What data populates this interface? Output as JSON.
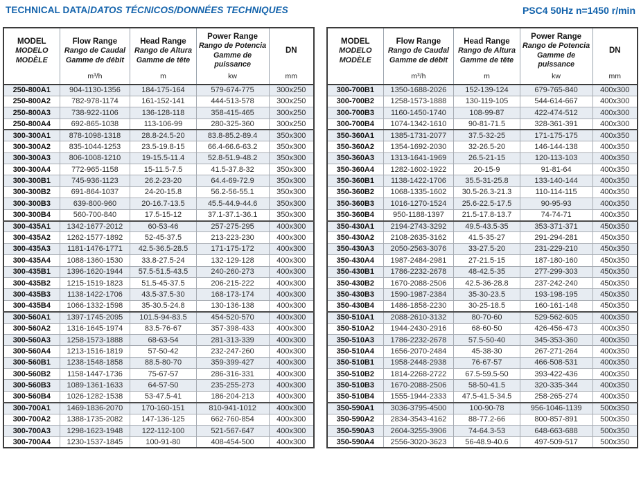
{
  "header": {
    "title_main": "TECHNICAL DATA/",
    "title_intl": "DATOS TÉCNICOS/DONNÉES TECHNIQUES",
    "spec": "PSC4 50Hz n=1450 r/min"
  },
  "colors": {
    "accent": "#1262ab",
    "row_shade": "#e7ecf2",
    "border_dark": "#3b3b3b",
    "border_light": "#9aa3ad"
  },
  "column_headers": [
    {
      "id": "model",
      "labels": [
        "MODEL",
        "MODELO",
        "MODÈLE"
      ],
      "unit": ""
    },
    {
      "id": "flow",
      "labels": [
        "Flow Range",
        "Rango de Caudal",
        "Gamme de débit"
      ],
      "unit": "m³/h"
    },
    {
      "id": "head",
      "labels": [
        "Head Range",
        "Rango de Altura",
        "Gamme de tête"
      ],
      "unit": "m"
    },
    {
      "id": "power",
      "labels": [
        "Power Range",
        "Rango de Potencia",
        "Gamme de puissance"
      ],
      "unit": "kw"
    },
    {
      "id": "dn",
      "labels": [
        "DN"
      ],
      "unit": "mm"
    }
  ],
  "group_sizes": [
    4,
    8,
    8,
    8,
    4
  ],
  "tables": [
    {
      "rows": [
        [
          "250-800A1",
          "904-1130-1356",
          "184-175-164",
          "579-674-775",
          "300x250"
        ],
        [
          "250-800A2",
          "782-978-1174",
          "161-152-141",
          "444-513-578",
          "300x250"
        ],
        [
          "250-800A3",
          "738-922-1106",
          "136-128-118",
          "358-415-465",
          "300x250"
        ],
        [
          "250-800A4",
          "692-865-1038",
          "113-106-99",
          "280-325-360",
          "300x250"
        ],
        [
          "300-300A1",
          "878-1098-1318",
          "28.8-24.5-20",
          "83.8-85.2-89.4",
          "350x300"
        ],
        [
          "300-300A2",
          "835-1044-1253",
          "23.5-19.8-15",
          "66.4-66.6-63.2",
          "350x300"
        ],
        [
          "300-300A3",
          "806-1008-1210",
          "19-15.5-11.4",
          "52.8-51.9-48.2",
          "350x300"
        ],
        [
          "300-300A4",
          "772-965-1158",
          "15-11.5-7.5",
          "41.5-37.8-32",
          "350x300"
        ],
        [
          "300-300B1",
          "745-936-1123",
          "26.2-23-20",
          "64.4-69-72.9",
          "350x300"
        ],
        [
          "300-300B2",
          "691-864-1037",
          "24-20-15.8",
          "56.2-56-55.1",
          "350x300"
        ],
        [
          "300-300B3",
          "639-800-960",
          "20-16.7-13.5",
          "45.5-44.9-44.6",
          "350x300"
        ],
        [
          "300-300B4",
          "560-700-840",
          "17.5-15-12",
          "37.1-37.1-36.1",
          "350x300"
        ],
        [
          "300-435A1",
          "1342-1677-2012",
          "60-53-46",
          "257-275-295",
          "400x300"
        ],
        [
          "300-435A2",
          "1262-1577-1892",
          "52-45-37.5",
          "213-223-230",
          "400x300"
        ],
        [
          "300-435A3",
          "1181-1476-1771",
          "42.5-36.5-28.5",
          "171-175-172",
          "400x300"
        ],
        [
          "300-435A4",
          "1088-1360-1530",
          "33.8-27.5-24",
          "132-129-128",
          "400x300"
        ],
        [
          "300-435B1",
          "1396-1620-1944",
          "57.5-51.5-43.5",
          "240-260-273",
          "400x300"
        ],
        [
          "300-435B2",
          "1215-1519-1823",
          "51.5-45-37.5",
          "206-215-222",
          "400x300"
        ],
        [
          "300-435B3",
          "1138-1422-1706",
          "43.5-37.5-30",
          "168-173-174",
          "400x300"
        ],
        [
          "300-435B4",
          "1066-1332-1598",
          "35-30.5-24.8",
          "130-136-138",
          "400x300"
        ],
        [
          "300-560A1",
          "1397-1745-2095",
          "101.5-94-83.5",
          "454-520-570",
          "400x300"
        ],
        [
          "300-560A2",
          "1316-1645-1974",
          "83.5-76-67",
          "357-398-433",
          "400x300"
        ],
        [
          "300-560A3",
          "1258-1573-1888",
          "68-63-54",
          "281-313-339",
          "400x300"
        ],
        [
          "300-560A4",
          "1213-1516-1819",
          "57-50-42",
          "232-247-260",
          "400x300"
        ],
        [
          "300-560B1",
          "1238-1548-1858",
          "88.5-80-70",
          "359-399-427",
          "400x300"
        ],
        [
          "300-560B2",
          "1158-1447-1736",
          "75-67-57",
          "286-316-331",
          "400x300"
        ],
        [
          "300-560B3",
          "1089-1361-1633",
          "64-57-50",
          "235-255-273",
          "400x300"
        ],
        [
          "300-560B4",
          "1026-1282-1538",
          "53-47.5-41",
          "186-204-213",
          "400x300"
        ],
        [
          "300-700A1",
          "1469-1836-2070",
          "170-160-151",
          "810-941-1012",
          "400x300"
        ],
        [
          "300-700A2",
          "1388-1735-2082",
          "147-136-125",
          "662-760-854",
          "400x300"
        ],
        [
          "300-700A3",
          "1298-1623-1948",
          "122-112-100",
          "521-567-647",
          "400x300"
        ],
        [
          "300-700A4",
          "1230-1537-1845",
          "100-91-80",
          "408-454-500",
          "400x300"
        ]
      ]
    },
    {
      "rows": [
        [
          "300-700B1",
          "1350-1688-2026",
          "152-139-124",
          "679-765-840",
          "400x300"
        ],
        [
          "300-700B2",
          "1258-1573-1888",
          "130-119-105",
          "544-614-667",
          "400x300"
        ],
        [
          "300-700B3",
          "1160-1450-1740",
          "108-99-87",
          "422-474-512",
          "400x300"
        ],
        [
          "300-700B4",
          "1074-1342-1610",
          "90-81-71.5",
          "328-361-391",
          "400x300"
        ],
        [
          "350-360A1",
          "1385-1731-2077",
          "37.5-32-25",
          "171-175-175",
          "400x350"
        ],
        [
          "350-360A2",
          "1354-1692-2030",
          "32-26.5-20",
          "146-144-138",
          "400x350"
        ],
        [
          "350-360A3",
          "1313-1641-1969",
          "26.5-21-15",
          "120-113-103",
          "400x350"
        ],
        [
          "350-360A4",
          "1282-1602-1922",
          "20-15-9",
          "91-81-64",
          "400x350"
        ],
        [
          "350-360B1",
          "1138-1422-1706",
          "35.5-31-25.8",
          "133-140-144",
          "400x350"
        ],
        [
          "350-360B2",
          "1068-1335-1602",
          "30.5-26.3-21.3",
          "110-114-115",
          "400x350"
        ],
        [
          "350-360B3",
          "1016-1270-1524",
          "25.6-22.5-17.5",
          "90-95-93",
          "400x350"
        ],
        [
          "350-360B4",
          "950-1188-1397",
          "21.5-17.8-13.7",
          "74-74-71",
          "400x350"
        ],
        [
          "350-430A1",
          "2194-2743-3292",
          "49.5-43.5-35",
          "353-371-371",
          "450x350"
        ],
        [
          "350-430A2",
          "2108-2635-3162",
          "41.5-35-27",
          "291-294-281",
          "450x350"
        ],
        [
          "350-430A3",
          "2050-2563-3076",
          "33-27.5-20",
          "231-229-210",
          "450x350"
        ],
        [
          "350-430A4",
          "1987-2484-2981",
          "27-21.5-15",
          "187-180-160",
          "450x350"
        ],
        [
          "350-430B1",
          "1786-2232-2678",
          "48-42.5-35",
          "277-299-303",
          "450x350"
        ],
        [
          "350-430B2",
          "1670-2088-2506",
          "42.5-36-28.8",
          "237-242-240",
          "450x350"
        ],
        [
          "350-430B3",
          "1590-1987-2384",
          "35-30-23.5",
          "193-198-195",
          "450x350"
        ],
        [
          "350-430B4",
          "1486-1858-2230",
          "30-25-18.5",
          "160-161-148",
          "450x350"
        ],
        [
          "350-510A1",
          "2088-2610-3132",
          "80-70-60",
          "529-562-605",
          "400x350"
        ],
        [
          "350-510A2",
          "1944-2430-2916",
          "68-60-50",
          "426-456-473",
          "400x350"
        ],
        [
          "350-510A3",
          "1786-2232-2678",
          "57.5-50-40",
          "345-353-360",
          "400x350"
        ],
        [
          "350-510A4",
          "1656-2070-2484",
          "45-38-30",
          "267-271-264",
          "400x350"
        ],
        [
          "350-510B1",
          "1958-2448-2938",
          "76-67-57",
          "466-508-531",
          "400x350"
        ],
        [
          "350-510B2",
          "1814-2268-2722",
          "67.5-59.5-50",
          "393-422-436",
          "400x350"
        ],
        [
          "350-510B3",
          "1670-2088-2506",
          "58-50-41.5",
          "320-335-344",
          "400x350"
        ],
        [
          "350-510B4",
          "1555-1944-2333",
          "47.5-41.5-34.5",
          "258-265-274",
          "400x350"
        ],
        [
          "350-590A1",
          "3036-3795-4500",
          "100-90-78",
          "956-1046-1139",
          "500x350"
        ],
        [
          "350-590A2",
          "2834-3543-4162",
          "88-77.2-66",
          "800-857-891",
          "500x350"
        ],
        [
          "350-590A3",
          "2604-3255-3906",
          "74-64.3-53",
          "648-663-688",
          "500x350"
        ],
        [
          "350-590A4",
          "2556-3020-3623",
          "56-48.9-40.6",
          "497-509-517",
          "500x350"
        ]
      ]
    }
  ]
}
